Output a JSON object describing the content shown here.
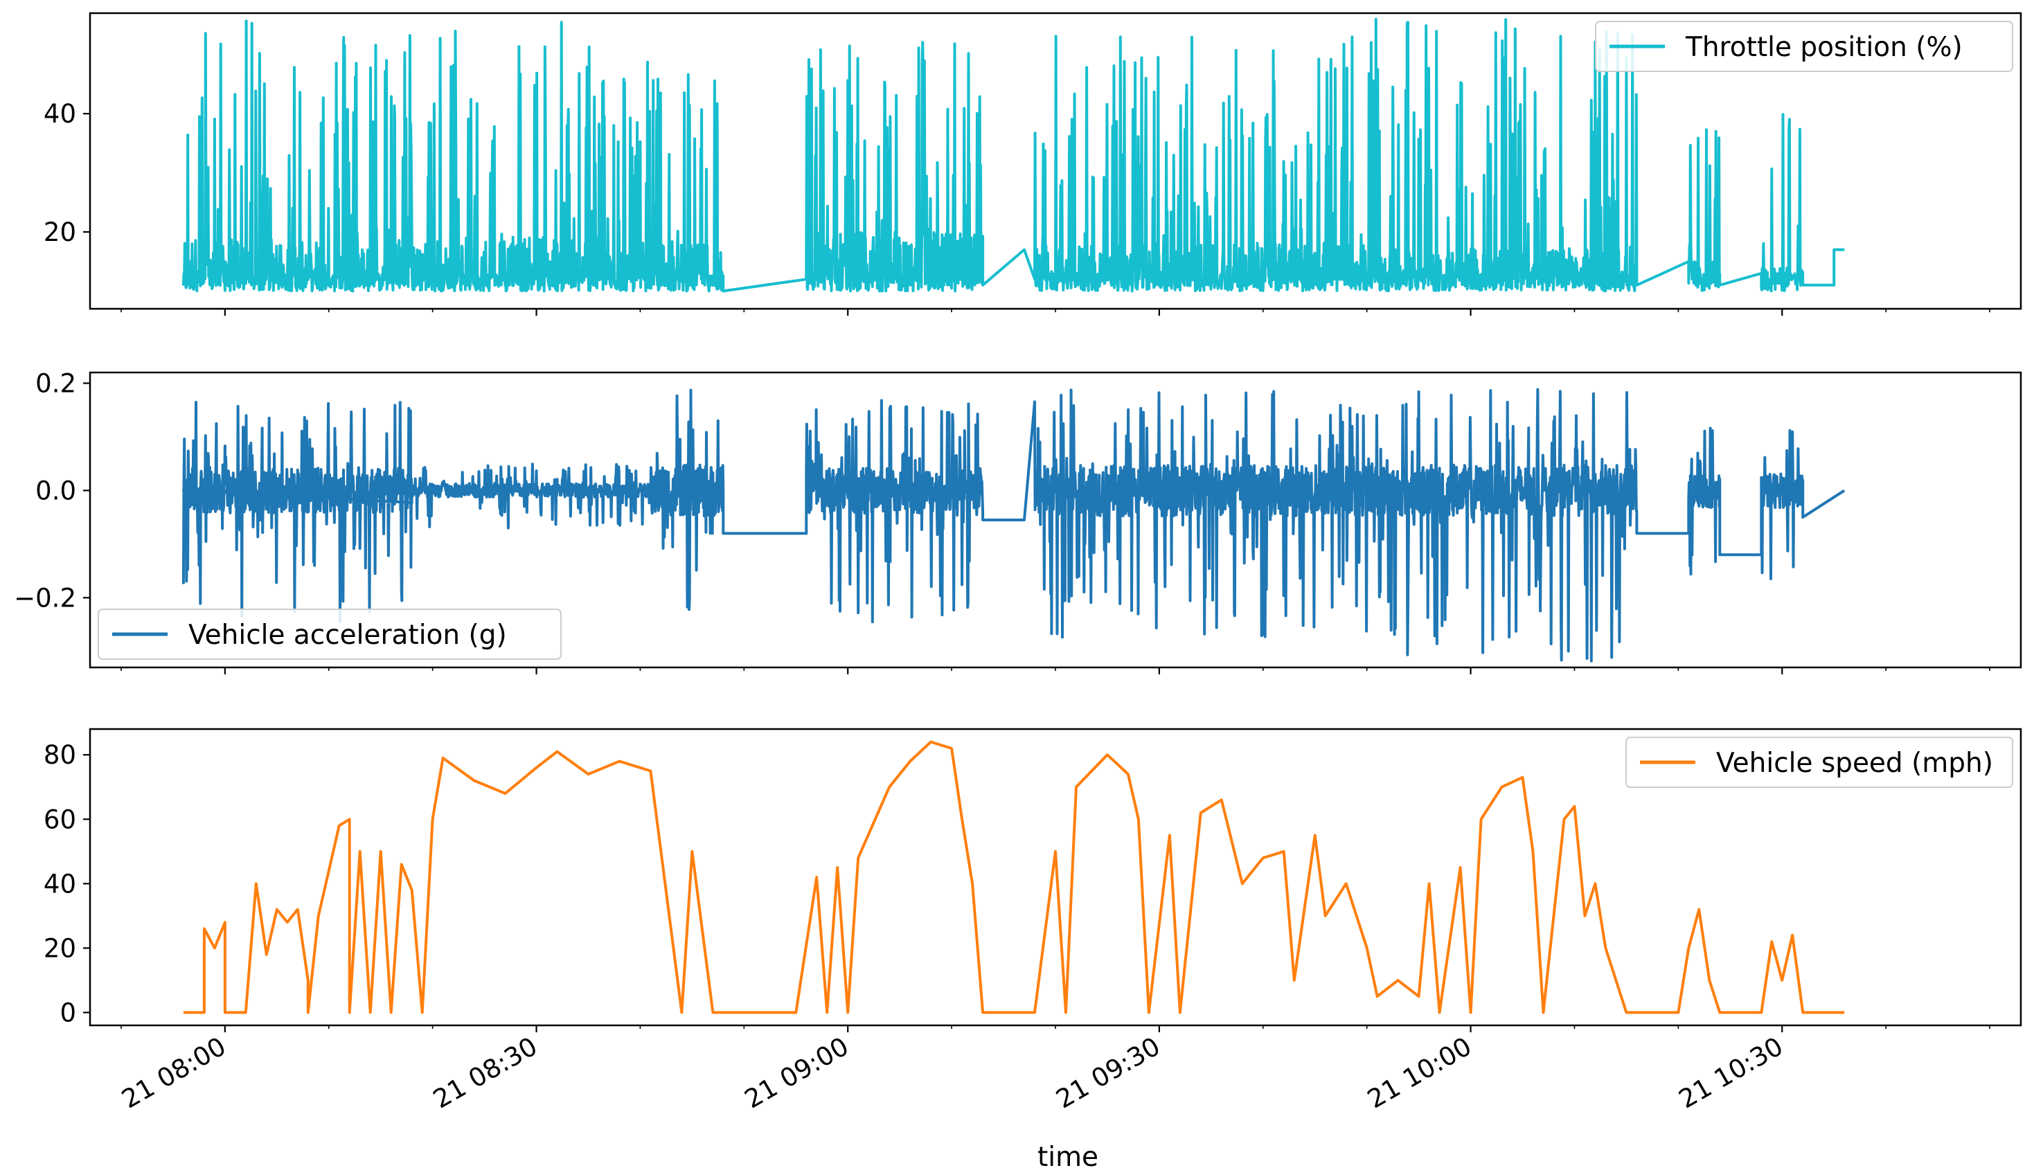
{
  "chart_data": [
    {
      "type": "line",
      "series": [
        {
          "name": "Throttle position (%)",
          "color": "#17becf"
        }
      ],
      "x_range": [
        "21 07:47",
        "21 10:53"
      ],
      "ylim": [
        7,
        57
      ],
      "yticks": [
        20,
        40
      ],
      "ytick_labels": [
        "20",
        "40"
      ],
      "legend_loc": "upper right",
      "segments": [
        {
          "x0": "21 07:56",
          "x1": "21 08:36",
          "base": 11,
          "peak": 56,
          "mid": 19
        },
        {
          "x0": "21 08:36",
          "x1": "21 08:48",
          "base": 11,
          "peak": 50,
          "mid": 18
        },
        {
          "x0": "21 08:56",
          "x1": "21 09:13",
          "base": 11,
          "peak": 54,
          "mid": 20
        },
        {
          "x0": "21 09:18",
          "x1": "21 09:50",
          "base": 11,
          "peak": 54,
          "mid": 18
        },
        {
          "x0": "21 09:50",
          "x1": "21 10:16",
          "base": 11,
          "peak": 56,
          "mid": 17
        },
        {
          "x0": "21 10:21",
          "x1": "21 10:24",
          "base": 11,
          "peak": 38,
          "mid": 15
        },
        {
          "x0": "21 10:28",
          "x1": "21 10:32",
          "base": 11,
          "peak": 43,
          "mid": 14
        }
      ],
      "flat_segments": [
        {
          "x0": "21 08:48",
          "x1": "21 08:56",
          "y0": 10,
          "y1": 12
        },
        {
          "x0": "21 09:13",
          "x1": "21 09:17",
          "y0": 11,
          "y1": 17
        },
        {
          "x0": "21 10:16",
          "x1": "21 10:21",
          "y0": 11,
          "y1": 15
        },
        {
          "x0": "21 10:24",
          "x1": "21 10:28",
          "y0": 11,
          "y1": 13
        },
        {
          "x0": "21 10:32",
          "x1": "21 10:35",
          "y0": 11,
          "y1": 11
        },
        {
          "x0": "21 10:35",
          "x1": "21 10:36",
          "y0": 17,
          "y1": 17
        }
      ]
    },
    {
      "type": "line",
      "series": [
        {
          "name": "Vehicle acceleration (g)",
          "color": "#1f77b4"
        }
      ],
      "x_range": [
        "21 07:47",
        "21 10:53"
      ],
      "ylim": [
        -0.33,
        0.22
      ],
      "yticks": [
        -0.2,
        0.0,
        0.2
      ],
      "ytick_labels": [
        "−0.2",
        "0.0",
        "0.2"
      ],
      "legend_loc": "lower left",
      "segments": [
        {
          "x0": "21 07:56",
          "x1": "21 08:18",
          "amp_up": 0.17,
          "amp_down": -0.25
        },
        {
          "x0": "21 08:18",
          "x1": "21 08:41",
          "amp_up": 0.05,
          "amp_down": -0.07
        },
        {
          "x0": "21 08:41",
          "x1": "21 08:48",
          "amp_up": 0.19,
          "amp_down": -0.24
        },
        {
          "x0": "21 08:56",
          "x1": "21 09:13",
          "amp_up": 0.17,
          "amp_down": -0.26
        },
        {
          "x0": "21 09:18",
          "x1": "21 09:50",
          "amp_up": 0.19,
          "amp_down": -0.28
        },
        {
          "x0": "21 09:50",
          "x1": "21 10:16",
          "amp_up": 0.19,
          "amp_down": -0.32
        },
        {
          "x0": "21 10:21",
          "x1": "21 10:24",
          "amp_up": 0.13,
          "amp_down": -0.17
        },
        {
          "x0": "21 10:28",
          "x1": "21 10:32",
          "amp_up": 0.13,
          "amp_down": -0.19
        }
      ],
      "flat_segments": [
        {
          "x0": "21 07:56",
          "x1": "21 07:57",
          "y0": 0.0,
          "y1": 0.0
        },
        {
          "x0": "21 08:48",
          "x1": "21 08:56",
          "y0": -0.08,
          "y1": -0.08
        },
        {
          "x0": "21 09:13",
          "x1": "21 09:17",
          "y0": -0.055,
          "y1": -0.055
        },
        {
          "x0": "21 10:16",
          "x1": "21 10:21",
          "y0": -0.08,
          "y1": -0.08
        },
        {
          "x0": "21 10:24",
          "x1": "21 10:28",
          "y0": -0.12,
          "y1": -0.12
        },
        {
          "x0": "21 10:32",
          "x1": "21 10:36",
          "y0": -0.05,
          "y1": 0.0
        }
      ]
    },
    {
      "type": "line",
      "series": [
        {
          "name": "Vehicle speed (mph)",
          "color": "#ff7f0e"
        }
      ],
      "x_range": [
        "21 07:47",
        "21 10:53"
      ],
      "ylim": [
        -4,
        88
      ],
      "yticks": [
        0,
        20,
        40,
        60,
        80
      ],
      "ytick_labels": [
        "0",
        "20",
        "40",
        "60",
        "80"
      ],
      "xticks": [
        "21 08:00",
        "21 08:30",
        "21 09:00",
        "21 09:30",
        "21 10:00",
        "21 10:30"
      ],
      "xlabel": "time",
      "legend_loc": "upper right",
      "points": [
        [
          "21 07:56",
          0
        ],
        [
          "21 07:58",
          0
        ],
        [
          "21 07:58",
          26
        ],
        [
          "21 07:59",
          20
        ],
        [
          "21 08:00",
          28
        ],
        [
          "21 08:00",
          0
        ],
        [
          "21 08:02",
          0
        ],
        [
          "21 08:03",
          40
        ],
        [
          "21 08:04",
          18
        ],
        [
          "21 08:05",
          32
        ],
        [
          "21 08:06",
          28
        ],
        [
          "21 08:07",
          32
        ],
        [
          "21 08:08",
          10
        ],
        [
          "21 08:08",
          0
        ],
        [
          "21 08:09",
          30
        ],
        [
          "21 08:10",
          44
        ],
        [
          "21 08:11",
          58
        ],
        [
          "21 08:12",
          60
        ],
        [
          "21 08:12",
          0
        ],
        [
          "21 08:13",
          50
        ],
        [
          "21 08:14",
          0
        ],
        [
          "21 08:15",
          50
        ],
        [
          "21 08:16",
          0
        ],
        [
          "21 08:17",
          46
        ],
        [
          "21 08:18",
          38
        ],
        [
          "21 08:19",
          0
        ],
        [
          "21 08:20",
          60
        ],
        [
          "21 08:21",
          79
        ],
        [
          "21 08:24",
          72
        ],
        [
          "21 08:27",
          68
        ],
        [
          "21 08:30",
          76
        ],
        [
          "21 08:32",
          81
        ],
        [
          "21 08:35",
          74
        ],
        [
          "21 08:38",
          78
        ],
        [
          "21 08:41",
          75
        ],
        [
          "21 08:42",
          50
        ],
        [
          "21 08:44",
          0
        ],
        [
          "21 08:45",
          50
        ],
        [
          "21 08:46",
          25
        ],
        [
          "21 08:47",
          0
        ],
        [
          "21 08:55",
          0
        ],
        [
          "21 08:57",
          42
        ],
        [
          "21 08:58",
          0
        ],
        [
          "21 08:59",
          45
        ],
        [
          "21 09:00",
          0
        ],
        [
          "21 09:01",
          48
        ],
        [
          "21 09:04",
          70
        ],
        [
          "21 09:06",
          78
        ],
        [
          "21 09:08",
          84
        ],
        [
          "21 09:10",
          82
        ],
        [
          "21 09:11",
          60
        ],
        [
          "21 09:12",
          40
        ],
        [
          "21 09:13",
          0
        ],
        [
          "21 09:18",
          0
        ],
        [
          "21 09:20",
          50
        ],
        [
          "21 09:21",
          0
        ],
        [
          "21 09:22",
          70
        ],
        [
          "21 09:25",
          80
        ],
        [
          "21 09:27",
          74
        ],
        [
          "21 09:28",
          60
        ],
        [
          "21 09:29",
          0
        ],
        [
          "21 09:31",
          55
        ],
        [
          "21 09:32",
          0
        ],
        [
          "21 09:34",
          62
        ],
        [
          "21 09:36",
          66
        ],
        [
          "21 09:38",
          40
        ],
        [
          "21 09:40",
          48
        ],
        [
          "21 09:42",
          50
        ],
        [
          "21 09:43",
          10
        ],
        [
          "21 09:45",
          55
        ],
        [
          "21 09:46",
          30
        ],
        [
          "21 09:48",
          40
        ],
        [
          "21 09:50",
          20
        ],
        [
          "21 09:51",
          5
        ],
        [
          "21 09:53",
          10
        ],
        [
          "21 09:55",
          5
        ],
        [
          "21 09:56",
          40
        ],
        [
          "21 09:57",
          0
        ],
        [
          "21 09:59",
          45
        ],
        [
          "21 10:00",
          0
        ],
        [
          "21 10:01",
          60
        ],
        [
          "21 10:03",
          70
        ],
        [
          "21 10:05",
          73
        ],
        [
          "21 10:06",
          50
        ],
        [
          "21 10:07",
          0
        ],
        [
          "21 10:09",
          60
        ],
        [
          "21 10:10",
          64
        ],
        [
          "21 10:11",
          30
        ],
        [
          "21 10:12",
          40
        ],
        [
          "21 10:13",
          20
        ],
        [
          "21 10:15",
          0
        ],
        [
          "21 10:20",
          0
        ],
        [
          "21 10:21",
          20
        ],
        [
          "21 10:22",
          32
        ],
        [
          "21 10:23",
          10
        ],
        [
          "21 10:24",
          0
        ],
        [
          "21 10:28",
          0
        ],
        [
          "21 10:29",
          22
        ],
        [
          "21 10:30",
          10
        ],
        [
          "21 10:31",
          24
        ],
        [
          "21 10:32",
          0
        ],
        [
          "21 10:36",
          0
        ]
      ]
    }
  ]
}
